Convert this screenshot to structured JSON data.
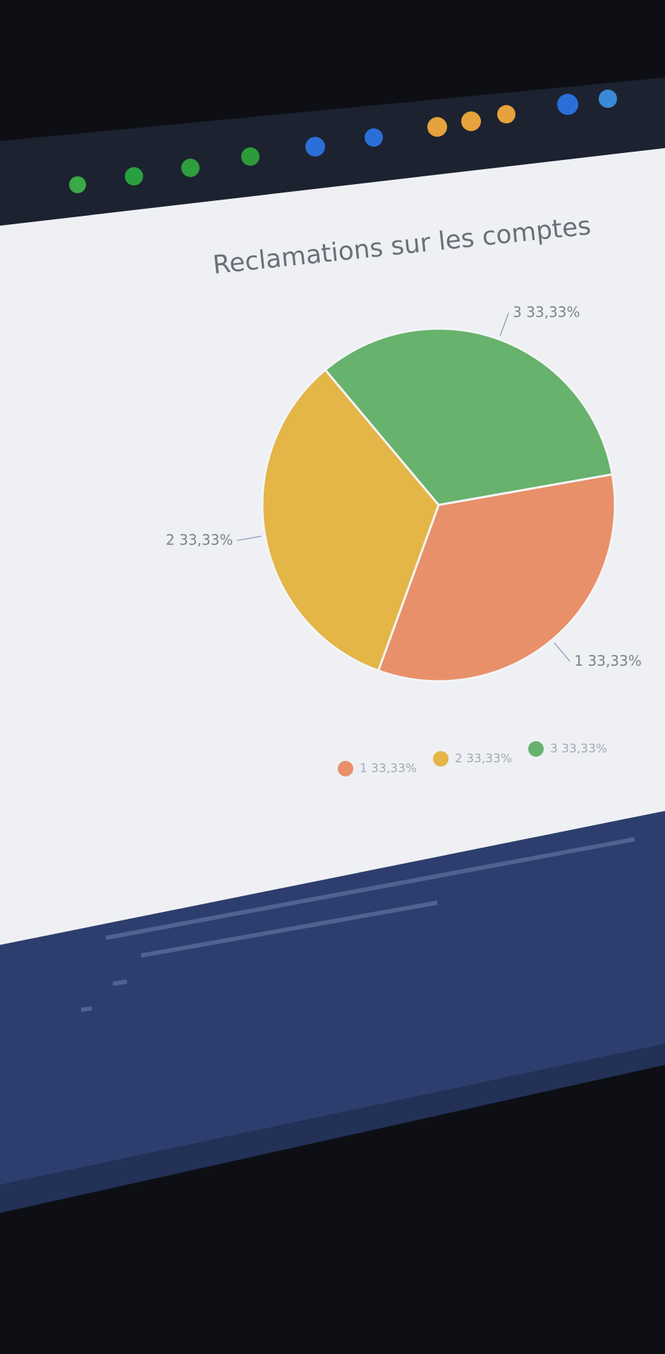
{
  "chart_data": {
    "type": "pie",
    "title": "Reclamations sur les comptes",
    "categories": [
      "1",
      "2",
      "3"
    ],
    "values": [
      33.33,
      33.33,
      33.33
    ],
    "value_labels": [
      "33,33%",
      "33,33%",
      "33,33%"
    ],
    "colors": [
      "#e8906a",
      "#e4b547",
      "#67b26c"
    ],
    "startangle": 80,
    "legend": "bottom"
  }
}
